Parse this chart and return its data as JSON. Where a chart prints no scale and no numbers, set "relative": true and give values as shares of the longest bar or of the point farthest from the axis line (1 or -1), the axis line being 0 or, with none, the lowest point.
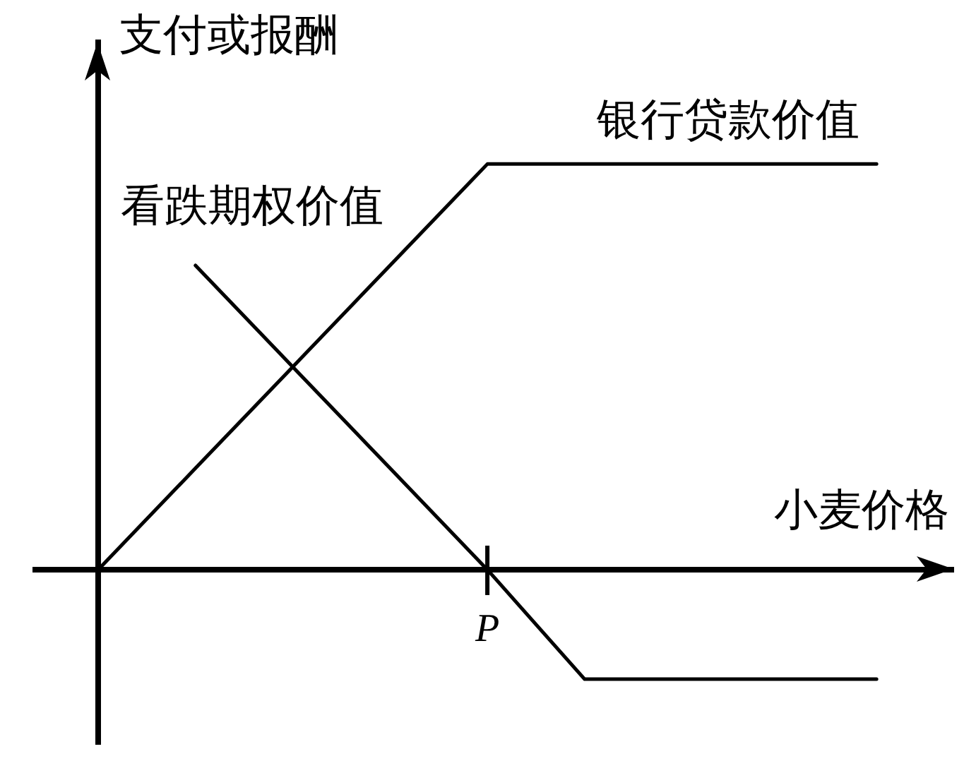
{
  "chart_data": {
    "type": "line",
    "relative": true,
    "xlabel": "小麦价格",
    "ylabel": "支付或报酬",
    "legend": false,
    "marker": "none",
    "line_style": "solid",
    "annotations": [
      "P"
    ],
    "categories": [
      null,
      null,
      null,
      null,
      null,
      null,
      null,
      null,
      null
    ],
    "series": [
      {
        "name": "银行贷款价值",
        "color": "#000000",
        "values": [
          0,
          0.25,
          0.5,
          0.75,
          1,
          1,
          1,
          1,
          1
        ]
      },
      {
        "name": "看跌期权价值",
        "color": "#000000",
        "values": [
          null,
          0.75,
          0.5,
          0.25,
          0,
          -0.27,
          -0.27,
          -0.27,
          -0.27
        ]
      }
    ]
  }
}
